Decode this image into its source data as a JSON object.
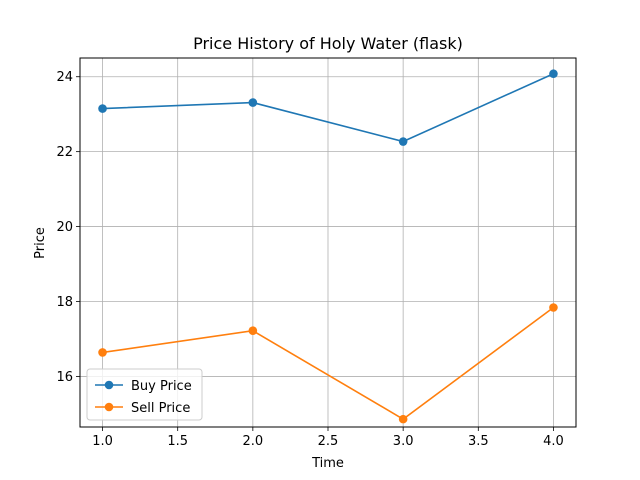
{
  "chart_data": {
    "type": "line",
    "title": "Price History of Holy Water (flask)",
    "xlabel": "Time",
    "ylabel": "Price",
    "x": [
      1.0,
      2.0,
      3.0,
      4.0
    ],
    "xlim": [
      0.85,
      4.15
    ],
    "ylim": [
      14.65,
      24.5
    ],
    "xticks": [
      1.0,
      1.5,
      2.0,
      2.5,
      3.0,
      3.5,
      4.0
    ],
    "xtick_labels": [
      "1.0",
      "1.5",
      "2.0",
      "2.5",
      "3.0",
      "3.5",
      "4.0"
    ],
    "yticks": [
      16,
      18,
      20,
      22,
      24
    ],
    "ytick_labels": [
      "16",
      "18",
      "20",
      "22",
      "24"
    ],
    "grid": true,
    "legend_position": "lower-left",
    "series": [
      {
        "name": "Buy Price",
        "color": "#1f77b4",
        "values": [
          23.15,
          23.31,
          22.27,
          24.08
        ]
      },
      {
        "name": "Sell Price",
        "color": "#ff7f0e",
        "values": [
          16.64,
          17.22,
          14.86,
          17.84
        ]
      }
    ]
  }
}
